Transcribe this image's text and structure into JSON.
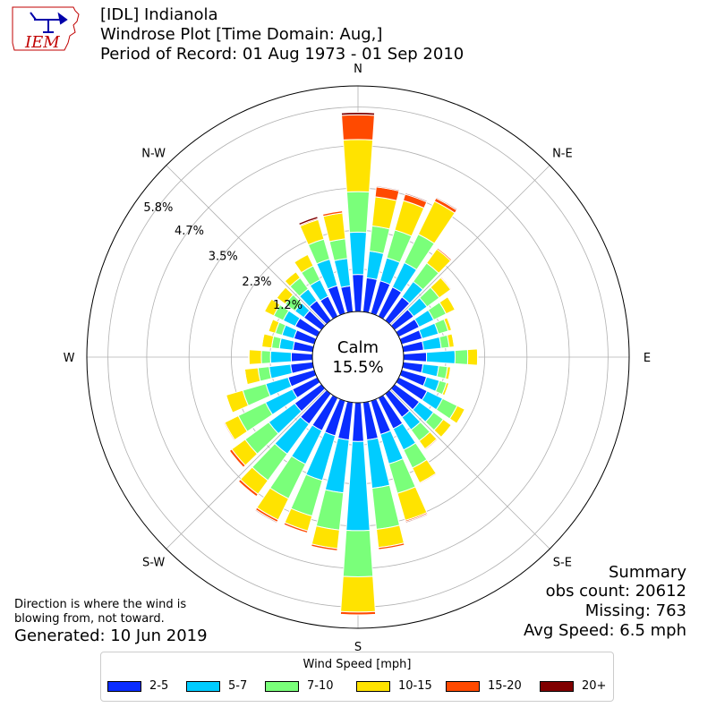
{
  "header": {
    "line1": "[IDL] Indianola",
    "line2": "Windrose Plot [Time Domain: Aug,]",
    "line3": "Period of Record: 01 Aug 1973 - 01 Sep 2010"
  },
  "logo": {
    "text": "IEM"
  },
  "footer": {
    "note_line1": "Direction is where the wind is",
    "note_line2": "blowing from, not toward.",
    "generated": "Generated: 10 Jun 2019"
  },
  "summary": {
    "title": "Summary",
    "obs_count": "obs count: 20612",
    "missing": "Missing: 763",
    "avg_speed": "Avg Speed: 6.5 mph"
  },
  "chart_data": {
    "type": "windrose",
    "calm_label": "Calm",
    "calm_value": "15.5%",
    "calm_percent": 15.5,
    "direction_labels": [
      "N",
      "N-E",
      "E",
      "S-E",
      "S",
      "S-W",
      "W",
      "N-W"
    ],
    "radial_ticks": [
      1.2,
      2.3,
      3.5,
      4.7,
      5.8
    ],
    "radial_tick_labels": [
      "1.2%",
      "2.3%",
      "3.5%",
      "4.7%",
      "5.8%"
    ],
    "rmax_percent": 6.4,
    "legend_title": "Wind Speed [mph]",
    "legend_placement": "bottom-center",
    "grid": true,
    "speed_bins": [
      {
        "label": "2-5",
        "color": "#0a2dff"
      },
      {
        "label": "5-7",
        "color": "#00ccff"
      },
      {
        "label": "7-10",
        "color": "#7aff7a"
      },
      {
        "label": "10-15",
        "color": "#ffe300"
      },
      {
        "label": "15-20",
        "color": "#ff4a00"
      },
      {
        "label": "20+",
        "color": "#800000"
      }
    ],
    "directions_deg": [
      0,
      10,
      20,
      30,
      40,
      50,
      60,
      70,
      80,
      90,
      100,
      110,
      120,
      130,
      140,
      150,
      160,
      170,
      180,
      190,
      200,
      210,
      220,
      230,
      240,
      250,
      260,
      270,
      280,
      290,
      300,
      310,
      320,
      330,
      340,
      350
    ],
    "cumulative_percent_by_bin": [
      [
        1.05,
        2.25,
        3.4,
        4.88,
        5.58,
        5.65
      ],
      [
        0.97,
        1.73,
        2.45,
        3.28,
        3.56,
        3.59
      ],
      [
        0.96,
        1.64,
        2.46,
        3.33,
        3.52,
        3.55
      ],
      [
        0.92,
        1.69,
        2.59,
        3.63,
        3.73,
        3.76
      ],
      [
        0.82,
        1.36,
        2.01,
        2.5,
        2.54,
        2.55
      ],
      [
        0.66,
        1.13,
        1.56,
        1.96,
        1.99,
        2.0
      ],
      [
        0.64,
        1.1,
        1.49,
        1.77,
        1.78,
        1.79
      ],
      [
        0.6,
        1.08,
        1.37,
        1.47,
        1.49,
        1.5
      ],
      [
        0.58,
        1.08,
        1.31,
        1.45,
        1.46,
        1.47
      ],
      [
        0.65,
        1.46,
        1.82,
        2.1,
        2.11,
        2.11
      ],
      [
        0.56,
        1.01,
        1.26,
        1.35,
        1.36,
        1.36
      ],
      [
        0.73,
        1.11,
        1.32,
        1.39,
        1.4,
        1.4
      ],
      [
        0.89,
        1.38,
        1.84,
        2.08,
        2.1,
        2.1
      ],
      [
        0.86,
        1.36,
        1.7,
        1.98,
        2.0,
        2.0
      ],
      [
        0.82,
        1.26,
        1.65,
        1.93,
        1.96,
        1.96
      ],
      [
        0.97,
        1.64,
        2.21,
        2.68,
        2.71,
        2.72
      ],
      [
        0.99,
        1.86,
        2.73,
        3.53,
        3.57,
        3.6
      ],
      [
        1.07,
        2.45,
        3.62,
        4.14,
        4.2,
        4.2
      ],
      [
        1.1,
        3.63,
        4.94,
        5.94,
        6.02,
        6.02
      ],
      [
        1.07,
        2.58,
        3.64,
        4.17,
        4.23,
        4.23
      ],
      [
        1.03,
        2.35,
        3.4,
        3.84,
        3.9,
        3.9
      ],
      [
        1.03,
        2.09,
        3.18,
        3.85,
        3.92,
        3.95
      ],
      [
        1.06,
        2.11,
        3.04,
        3.52,
        3.6,
        3.61
      ],
      [
        0.93,
        1.84,
        2.67,
        3.14,
        3.22,
        3.24
      ],
      [
        0.78,
        1.63,
        2.49,
        2.92,
        2.95,
        2.96
      ],
      [
        0.77,
        1.43,
        2.11,
        2.6,
        2.62,
        2.63
      ],
      [
        0.63,
        1.24,
        1.56,
        1.94,
        1.95,
        1.95
      ],
      [
        0.6,
        1.19,
        1.45,
        1.8,
        1.81,
        1.81
      ],
      [
        0.56,
        0.95,
        1.17,
        1.45,
        1.46,
        1.46
      ],
      [
        0.6,
        0.95,
        1.15,
        1.35,
        1.36,
        1.36
      ],
      [
        0.69,
        1.07,
        1.37,
        1.66,
        1.67,
        1.67
      ],
      [
        0.61,
        0.92,
        1.26,
        1.56,
        1.57,
        1.57
      ],
      [
        0.69,
        1.1,
        1.49,
        1.7,
        1.72,
        1.72
      ],
      [
        0.63,
        1.15,
        1.59,
        1.95,
        1.97,
        1.98
      ],
      [
        0.82,
        1.6,
        2.19,
        2.77,
        2.8,
        2.86
      ],
      [
        0.74,
        1.52,
        2.08,
        2.82,
        2.88,
        2.88
      ]
    ]
  }
}
